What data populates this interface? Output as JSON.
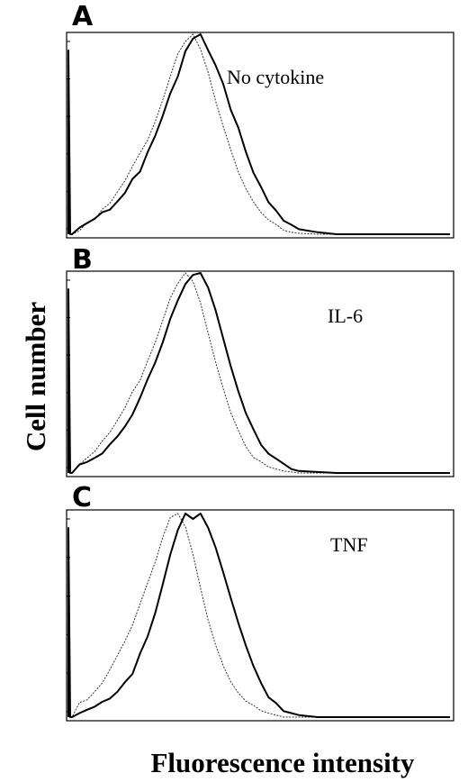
{
  "figure": {
    "ylabel": "Cell number",
    "xlabel": "Fluorescence intensity"
  },
  "chart_data": [
    {
      "type": "line",
      "panel": "A",
      "condition": "No cytokine",
      "x": [
        0,
        2,
        4,
        6,
        8,
        10,
        12,
        14,
        16,
        18,
        20,
        22,
        24,
        26,
        28,
        30,
        32,
        34,
        36,
        38,
        40,
        42,
        44,
        46,
        48,
        50,
        52,
        54,
        56,
        58,
        60,
        65,
        70,
        75,
        80,
        85,
        90,
        95,
        100
      ],
      "series": [
        {
          "values": [
            0,
            0.03,
            0.06,
            0.08,
            0.13,
            0.16,
            0.22,
            0.27,
            0.33,
            0.4,
            0.47,
            0.56,
            0.66,
            0.79,
            0.9,
            0.97,
            1.0,
            0.93,
            0.82,
            0.67,
            0.55,
            0.43,
            0.32,
            0.22,
            0.15,
            0.1,
            0.065,
            0.035,
            0.02,
            0.01,
            0.005,
            0,
            0,
            0,
            0,
            0,
            0,
            0,
            0
          ]
        },
        {
          "values": [
            0,
            0.03,
            0.05,
            0.07,
            0.1,
            0.12,
            0.16,
            0.2,
            0.27,
            0.32,
            0.41,
            0.5,
            0.6,
            0.71,
            0.8,
            0.92,
            0.97,
            1.0,
            0.92,
            0.84,
            0.75,
            0.62,
            0.52,
            0.42,
            0.32,
            0.24,
            0.17,
            0.12,
            0.08,
            0.05,
            0.03,
            0.01,
            0,
            0,
            0,
            0,
            0,
            0,
            0
          ]
        }
      ]
    },
    {
      "type": "line",
      "panel": "B",
      "condition": "IL-6",
      "x": [
        0,
        2,
        4,
        6,
        8,
        10,
        12,
        14,
        16,
        18,
        20,
        22,
        24,
        26,
        28,
        30,
        32,
        34,
        36,
        38,
        40,
        42,
        44,
        46,
        48,
        50,
        52,
        54,
        56,
        58,
        60,
        65,
        70,
        75,
        80,
        85,
        90,
        95,
        100
      ],
      "series": [
        {
          "values": [
            0,
            0.04,
            0.07,
            0.1,
            0.15,
            0.2,
            0.26,
            0.32,
            0.4,
            0.47,
            0.56,
            0.66,
            0.77,
            0.88,
            0.96,
            1.0,
            0.95,
            0.84,
            0.7,
            0.55,
            0.42,
            0.3,
            0.2,
            0.14,
            0.09,
            0.06,
            0.04,
            0.02,
            0.01,
            0.005,
            0,
            0,
            0,
            0,
            0,
            0,
            0,
            0,
            0
          ]
        },
        {
          "values": [
            0,
            0.03,
            0.06,
            0.08,
            0.11,
            0.15,
            0.19,
            0.24,
            0.3,
            0.37,
            0.46,
            0.55,
            0.65,
            0.76,
            0.86,
            0.94,
            0.99,
            1.0,
            0.94,
            0.82,
            0.68,
            0.54,
            0.41,
            0.3,
            0.21,
            0.14,
            0.09,
            0.06,
            0.04,
            0.02,
            0.01,
            0.005,
            0,
            0,
            0,
            0,
            0,
            0,
            0
          ]
        }
      ]
    },
    {
      "type": "line",
      "panel": "C",
      "condition": "TNF",
      "x": [
        0,
        2,
        4,
        6,
        8,
        10,
        12,
        14,
        16,
        18,
        20,
        22,
        24,
        26,
        28,
        30,
        32,
        34,
        36,
        38,
        40,
        42,
        44,
        46,
        48,
        50,
        52,
        54,
        56,
        58,
        60,
        65,
        70,
        75,
        80,
        85,
        90,
        95,
        100
      ],
      "series": [
        {
          "values": [
            0,
            0.06,
            0.09,
            0.13,
            0.18,
            0.24,
            0.31,
            0.38,
            0.46,
            0.55,
            0.65,
            0.76,
            0.88,
            0.97,
            1.0,
            0.93,
            0.8,
            0.64,
            0.49,
            0.36,
            0.26,
            0.18,
            0.12,
            0.08,
            0.05,
            0.03,
            0.02,
            0.01,
            0,
            0,
            0,
            0,
            0,
            0,
            0,
            0,
            0,
            0,
            0
          ]
        },
        {
          "values": [
            0,
            0.02,
            0.04,
            0.05,
            0.07,
            0.09,
            0.12,
            0.16,
            0.21,
            0.3,
            0.4,
            0.52,
            0.66,
            0.8,
            0.92,
            1.0,
            0.98,
            1.0,
            0.92,
            0.82,
            0.7,
            0.58,
            0.46,
            0.34,
            0.24,
            0.17,
            0.11,
            0.07,
            0.04,
            0.02,
            0.01,
            0,
            0,
            0,
            0,
            0,
            0,
            0,
            0
          ]
        }
      ]
    }
  ]
}
